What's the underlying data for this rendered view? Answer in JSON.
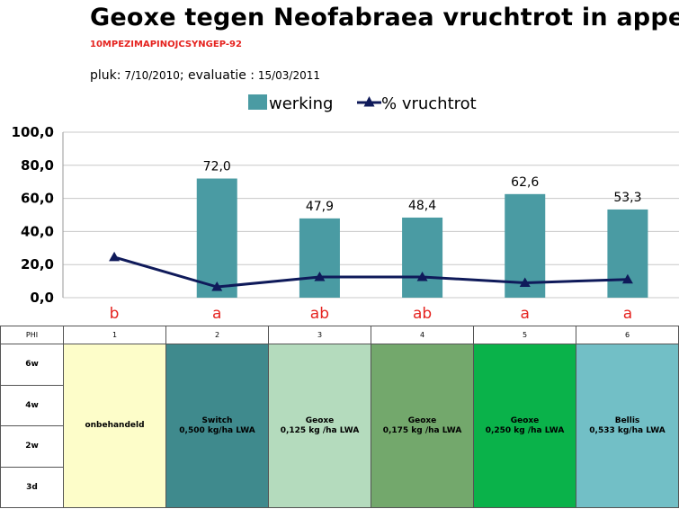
{
  "title": "Geoxe tegen Neofabraea vruchtrot in appel",
  "trial_code": "10MPEZIMAPINOJCSYNGEP-92",
  "harvest_label": "pluk:",
  "harvest_date": "7/10/2010",
  "evaluation_label": "; evaluatie :",
  "evaluation_date": "15/03/2011",
  "colors": {
    "bar": "#4a9ba3",
    "line": "#0f1a5a",
    "letters": "#e5231f"
  },
  "chart_data": {
    "type": "bar",
    "categories": [
      "1",
      "2",
      "3",
      "4",
      "5",
      "6"
    ],
    "ylim": [
      0,
      100
    ],
    "yticks": [
      "100,0",
      "80,0",
      "60,0",
      "40,0",
      "20,0",
      "0,0"
    ],
    "ytick_values": [
      100,
      80,
      60,
      40,
      20,
      0
    ],
    "grid": "horizontal",
    "legend_position": "top",
    "series": [
      {
        "name": "werking",
        "kind": "bar",
        "values": [
          null,
          72.0,
          47.9,
          48.4,
          62.6,
          53.3
        ],
        "labels": [
          "",
          "72,0",
          "47,9",
          "48,4",
          "62,6",
          "53,3"
        ]
      },
      {
        "name": "% vruchtrot",
        "kind": "line",
        "marker": "triangle",
        "values": [
          24.5,
          6.5,
          12.5,
          12.5,
          9.0,
          11.0
        ]
      }
    ],
    "significance_letters": [
      "b",
      "a",
      "ab",
      "ab",
      "a",
      "a"
    ]
  },
  "table": {
    "phi_header": "PHI",
    "columns": [
      "1",
      "2",
      "3",
      "4",
      "5",
      "6"
    ],
    "phi_rows": [
      "6w",
      "4w",
      "2w",
      "3d"
    ],
    "treatments": [
      {
        "name": "onbehandeld",
        "dose": "",
        "color": "#fdfdc9"
      },
      {
        "name": "Switch",
        "dose": "0,500 kg/ha LWA",
        "color": "#3f8a8d"
      },
      {
        "name": "Geoxe",
        "dose": "0,125 kg /ha LWA",
        "color": "#b4dbbd"
      },
      {
        "name": "Geoxe",
        "dose": "0,175 kg /ha LWA",
        "color": "#73a86c"
      },
      {
        "name": "Geoxe",
        "dose": "0,250 kg /ha LWA",
        "color": "#0ab24a"
      },
      {
        "name": "Bellis",
        "dose": "0,533 kg/ha LWA",
        "color": "#72bfc6"
      }
    ]
  }
}
